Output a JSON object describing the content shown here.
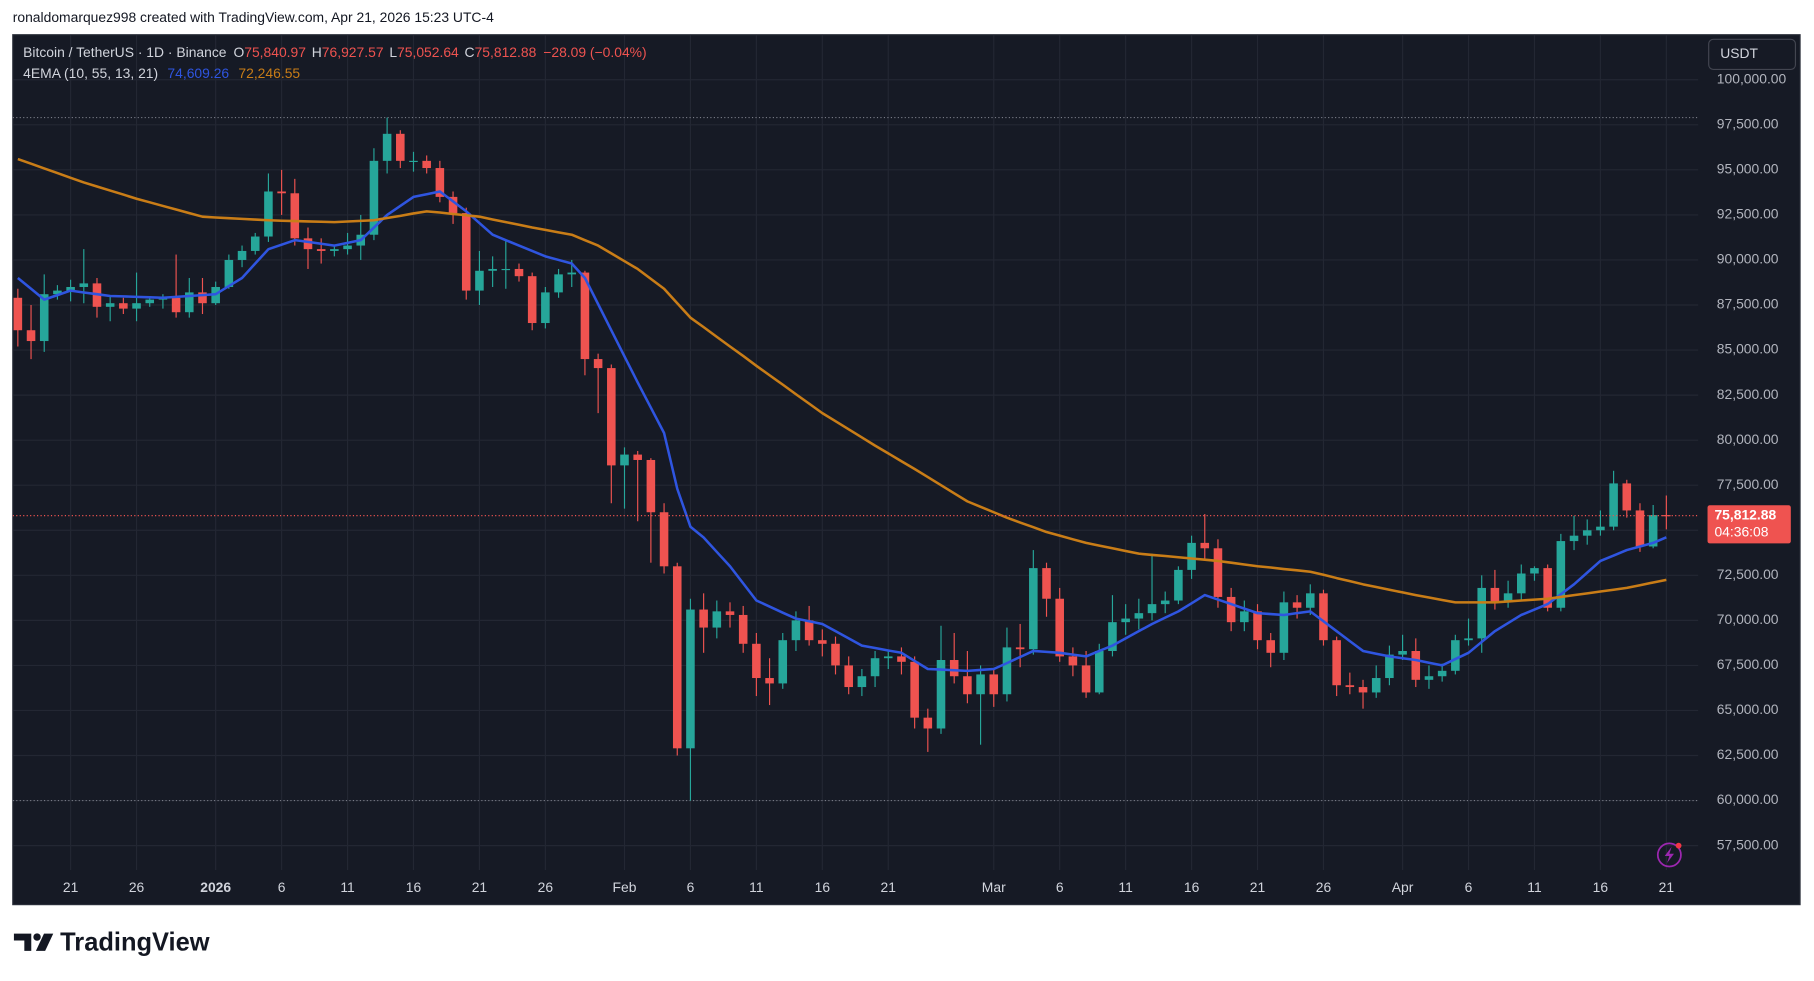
{
  "header": "ronaldomarquez998 created with TradingView.com, Apr 21, 2026 15:23 UTC-4",
  "brand": "TradingView",
  "chart_data": {
    "type": "candlestick",
    "title": "Bitcoin / TetherUS · 1D · Binance",
    "legend": [
      {
        "key": "O",
        "label": "75,840.97"
      },
      {
        "key": "H",
        "label": "76,927.57"
      },
      {
        "key": "L",
        "label": "75,052.64"
      },
      {
        "key": "C",
        "label": "75,812.88"
      }
    ],
    "change_label": "−28.09 (−0.04%)",
    "currency": "USDT",
    "categories": [
      null,
      null,
      null,
      null,
      "21",
      null,
      null,
      null,
      null,
      "26",
      null,
      null,
      null,
      null,
      null,
      "2026",
      null,
      null,
      null,
      null,
      "6",
      null,
      null,
      null,
      null,
      "11",
      null,
      null,
      null,
      null,
      "16",
      null,
      null,
      null,
      null,
      "21",
      null,
      null,
      null,
      null,
      "26",
      null,
      null,
      null,
      null,
      null,
      "Feb",
      null,
      null,
      null,
      null,
      "6",
      null,
      null,
      null,
      null,
      "11",
      null,
      null,
      null,
      null,
      "16",
      null,
      null,
      null,
      null,
      "21",
      null,
      null,
      null,
      null,
      null,
      null,
      null,
      "Mar",
      null,
      null,
      null,
      null,
      "6",
      null,
      null,
      null,
      null,
      "11",
      null,
      null,
      null,
      null,
      "16",
      null,
      null,
      null,
      null,
      "21",
      null,
      null,
      null,
      null,
      "26",
      null,
      null,
      null,
      null,
      null,
      "Apr",
      null,
      null,
      null,
      null,
      "6",
      null,
      null,
      null,
      null,
      "11",
      null,
      null,
      null,
      null,
      "16",
      null,
      null,
      null,
      null,
      "21"
    ],
    "open": [
      87900,
      86100,
      85500,
      88100,
      88300,
      88500,
      88700,
      87400,
      87600,
      87300,
      87600,
      87800,
      87900,
      87100,
      88200,
      87600,
      88500,
      90000,
      90500,
      91300,
      93800,
      93700,
      91200,
      90600,
      90500,
      90600,
      90800,
      91400,
      95500,
      97000,
      95500,
      95500,
      95100,
      93500,
      92600,
      88300,
      89400,
      89500,
      89500,
      89100,
      86500,
      88200,
      89200,
      89300,
      84500,
      84000,
      78600,
      79200,
      78900,
      76000,
      73000,
      62900,
      70600,
      69600,
      70500,
      70300,
      68700,
      66800,
      66500,
      68900,
      70000,
      68900,
      68700,
      67500,
      66300,
      66900,
      67900,
      68000,
      67700,
      64600,
      64000,
      67800,
      66900,
      65900,
      67000,
      65900,
      68500,
      68400,
      72900,
      71200,
      68000,
      67500,
      66000,
      68300,
      69900,
      70100,
      70400,
      70900,
      71100,
      72800,
      74300,
      74000,
      71300,
      69900,
      70500,
      68900,
      68200,
      71000,
      70700,
      71500,
      68900,
      66400,
      66300,
      66000,
      66800,
      68100,
      68300,
      66700,
      66900,
      67200,
      68900,
      69000,
      71800,
      71000,
      71500,
      72600,
      72900,
      70700,
      74400,
      74700,
      75000,
      75200,
      77600,
      76100,
      74100,
      75840.97
    ],
    "high": [
      88400,
      87500,
      89200,
      88600,
      88900,
      90600,
      89000,
      88000,
      87900,
      89300,
      88000,
      88100,
      90300,
      89000,
      89000,
      88800,
      90300,
      90800,
      91500,
      94800,
      95000,
      94500,
      91800,
      91200,
      90800,
      91500,
      92500,
      96200,
      97900,
      97200,
      96000,
      95800,
      95500,
      93800,
      92900,
      90500,
      90200,
      91100,
      89800,
      89300,
      88500,
      89500,
      90000,
      89400,
      84800,
      84200,
      79600,
      79400,
      79000,
      76500,
      73200,
      71200,
      71500,
      71100,
      71000,
      70800,
      69300,
      67900,
      69300,
      70500,
      70800,
      69500,
      69100,
      68000,
      67300,
      68300,
      68300,
      68500,
      68000,
      65100,
      69700,
      69300,
      68300,
      67500,
      67300,
      69600,
      69800,
      73900,
      73200,
      71800,
      68500,
      68300,
      68700,
      71400,
      70900,
      71200,
      73700,
      71600,
      73000,
      74700,
      75900,
      74500,
      71800,
      71100,
      70900,
      69300,
      71600,
      71400,
      72000,
      71700,
      69100,
      67100,
      66700,
      67500,
      68600,
      69200,
      69000,
      67500,
      67600,
      69200,
      70100,
      72500,
      72800,
      72200,
      73100,
      73000,
      73100,
      74800,
      75800,
      75600,
      76100,
      78300,
      77800,
      76500,
      76400,
      76927.57
    ],
    "low": [
      85200,
      84500,
      84900,
      87800,
      87700,
      87600,
      86800,
      86600,
      87000,
      86600,
      87400,
      87300,
      86800,
      86800,
      87000,
      87500,
      88400,
      89600,
      90300,
      91000,
      92500,
      90800,
      89500,
      89800,
      90200,
      90300,
      90000,
      91100,
      94800,
      95100,
      94900,
      94800,
      93200,
      92000,
      87800,
      87500,
      88500,
      88400,
      88800,
      86100,
      86200,
      87900,
      88500,
      83600,
      81500,
      76500,
      76200,
      75500,
      73200,
      72600,
      62500,
      60000,
      68200,
      69000,
      69600,
      68200,
      65800,
      65300,
      66200,
      68300,
      68600,
      68000,
      67000,
      65900,
      65800,
      66300,
      67300,
      67000,
      64000,
      62700,
      63700,
      66500,
      65400,
      63100,
      65200,
      65500,
      67400,
      68100,
      70200,
      67700,
      66900,
      65700,
      65900,
      68000,
      69200,
      69500,
      70000,
      70400,
      70900,
      72300,
      73400,
      70700,
      69400,
      69400,
      68400,
      67400,
      67800,
      70100,
      70300,
      68600,
      65800,
      65900,
      65100,
      65700,
      66400,
      67800,
      66300,
      66200,
      66600,
      67000,
      68600,
      68200,
      70600,
      70700,
      71100,
      72200,
      70500,
      70500,
      73900,
      74200,
      74700,
      75000,
      75700,
      73800,
      74000,
      75052.64
    ],
    "close": [
      86100,
      85500,
      88100,
      88300,
      88500,
      88700,
      87400,
      87600,
      87300,
      87600,
      87800,
      87900,
      87100,
      88200,
      87600,
      88500,
      90000,
      90500,
      91300,
      93800,
      93700,
      91200,
      90600,
      90500,
      90600,
      90800,
      91400,
      95500,
      97000,
      95500,
      95500,
      95100,
      93500,
      92600,
      88300,
      89400,
      89500,
      89500,
      89100,
      86500,
      88200,
      89200,
      89300,
      84500,
      84000,
      78600,
      79200,
      78900,
      76000,
      73000,
      62900,
      70600,
      69600,
      70500,
      70300,
      68700,
      66800,
      66500,
      68900,
      70000,
      68900,
      68700,
      67500,
      66300,
      66900,
      67900,
      68000,
      67700,
      64600,
      64000,
      67800,
      66900,
      65900,
      67000,
      65900,
      68500,
      68400,
      72900,
      71200,
      68000,
      67500,
      66000,
      68300,
      69900,
      70100,
      70400,
      70900,
      71100,
      72800,
      74300,
      74000,
      71300,
      69900,
      70500,
      68900,
      68200,
      71000,
      70700,
      71500,
      68900,
      66400,
      66300,
      66000,
      66800,
      68100,
      68300,
      66700,
      66900,
      67200,
      68900,
      69000,
      71800,
      71000,
      71500,
      72600,
      72900,
      70700,
      74400,
      74700,
      75000,
      75200,
      77600,
      76100,
      74100,
      75841,
      75812.88
    ],
    "up_color": "#26a69a",
    "down_color": "#ef5350",
    "indicator": {
      "name": "4EMA (10, 55, 13, 21)",
      "lines": [
        {
          "color": "#2f55e0",
          "last_label": "74,609.26",
          "values": [
            89000,
            88400,
            87800,
            88050,
            88300,
            88200,
            88100,
            88000,
            87980,
            87950,
            87930,
            87900,
            87950,
            88000,
            88050,
            88100,
            88550,
            89000,
            89800,
            90600,
            90850,
            91100,
            91000,
            90900,
            90800,
            90950,
            91100,
            91800,
            92500,
            93000,
            93500,
            93650,
            93800,
            93250,
            92700,
            92050,
            91400,
            91100,
            90800,
            90500,
            90200,
            90000,
            89800,
            89000,
            87550,
            86100,
            84650,
            83200,
            81800,
            80400,
            77300,
            75200,
            74600,
            73800,
            73000,
            72050,
            71100,
            70770,
            70430,
            70100,
            69950,
            69800,
            69400,
            69000,
            68600,
            68470,
            68330,
            68200,
            67750,
            67300,
            67270,
            67230,
            67200,
            67250,
            67300,
            67630,
            67970,
            68300,
            68250,
            68200,
            68100,
            68000,
            68300,
            68600,
            69000,
            69400,
            69800,
            70150,
            70500,
            70950,
            71400,
            71150,
            70900,
            70650,
            70400,
            70350,
            70300,
            70400,
            70500,
            69950,
            69400,
            68850,
            68300,
            68150,
            68000,
            67900,
            67800,
            67650,
            67500,
            67850,
            68200,
            68800,
            69400,
            69850,
            70300,
            70600,
            70900,
            71450,
            72000,
            72650,
            73300,
            73600,
            73900,
            74100,
            74300,
            74609.26
          ]
        },
        {
          "color": "#c97d17",
          "last_label": "72,246.55",
          "values": [
            95600,
            95340,
            95080,
            94820,
            94560,
            94300,
            94075,
            93850,
            93625,
            93400,
            93200,
            93000,
            92800,
            92600,
            92400,
            92360,
            92320,
            92280,
            92240,
            92200,
            92180,
            92160,
            92140,
            92120,
            92100,
            92130,
            92170,
            92200,
            92330,
            92450,
            92580,
            92700,
            92630,
            92550,
            92480,
            92400,
            92250,
            92100,
            91950,
            91800,
            91670,
            91530,
            91400,
            91100,
            90800,
            90370,
            89930,
            89500,
            88950,
            88400,
            87600,
            86800,
            86270,
            85730,
            85200,
            84670,
            84130,
            83600,
            83080,
            82550,
            82030,
            81500,
            81050,
            80600,
            80150,
            79700,
            79270,
            78830,
            78400,
            77950,
            77500,
            77050,
            76600,
            76300,
            76000,
            75700,
            75430,
            75170,
            74900,
            74700,
            74500,
            74300,
            74150,
            74000,
            73850,
            73700,
            73630,
            73570,
            73500,
            73430,
            73370,
            73300,
            73200,
            73100,
            73000,
            72930,
            72850,
            72780,
            72700,
            72530,
            72350,
            72180,
            72000,
            71850,
            71700,
            71550,
            71400,
            71270,
            71130,
            71000,
            71000,
            71000,
            71000,
            71050,
            71100,
            71150,
            71200,
            71300,
            71400,
            71500,
            71600,
            71700,
            71800,
            71950,
            72100,
            72246.55
          ]
        }
      ]
    },
    "price_label": "75,812.88",
    "countdown": "04:36:08",
    "ylim": [
      56150,
      102500
    ],
    "yticks": [
      {
        "value": 57500,
        "label": "57,500.00"
      },
      {
        "value": 60000,
        "label": "60,000.00"
      },
      {
        "value": 62500,
        "label": "62,500.00"
      },
      {
        "value": 65000,
        "label": "65,000.00"
      },
      {
        "value": 67500,
        "label": "67,500.00"
      },
      {
        "value": 70000,
        "label": "70,000.00"
      },
      {
        "value": 72500,
        "label": "72,500.00"
      },
      {
        "value": 75000,
        "label": "75,000.00"
      },
      {
        "value": 77500,
        "label": "77,500.00"
      },
      {
        "value": 80000,
        "label": "80,000.00"
      },
      {
        "value": 82500,
        "label": "82,500.00"
      },
      {
        "value": 85000,
        "label": "85,000.00"
      },
      {
        "value": 87500,
        "label": "87,500.00"
      },
      {
        "value": 90000,
        "label": "90,000.00"
      },
      {
        "value": 92500,
        "label": "92,500.00"
      },
      {
        "value": 95000,
        "label": "95,000.00"
      },
      {
        "value": 97500,
        "label": "97,500.00"
      },
      {
        "value": 100000,
        "label": "100,000.00"
      }
    ],
    "grid": true
  }
}
